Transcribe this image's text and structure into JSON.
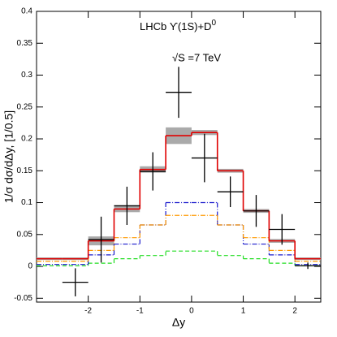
{
  "chart_data": {
    "type": "histogram",
    "annotations": [
      {
        "text": "LHCb ϒ(1S)+D",
        "sup": "0"
      },
      {
        "text": "√S =7 TeV"
      }
    ],
    "x_label": "Δy",
    "y_label": "1/σ dσ/dΔy, [1/0.5]",
    "xlim": [
      -3,
      2.5
    ],
    "ylim": [
      -0.056,
      0.4
    ],
    "xticks": [
      -2,
      -1,
      0,
      1,
      2
    ],
    "yticks": [
      -0.05,
      0,
      0.05,
      0.1,
      0.15,
      0.2,
      0.25,
      0.3,
      0.35,
      0.4
    ],
    "bins": [
      -3,
      -2.5,
      -2,
      -1.5,
      -1,
      -0.5,
      0,
      0.5,
      1,
      1.5,
      2,
      2.5
    ],
    "series": [
      {
        "color": "#22dd22",
        "style": "dashed",
        "values": [
          0.001,
          0.001,
          0.005,
          0.012,
          0.017,
          0.024,
          0.024,
          0.017,
          0.012,
          0.005,
          0.001
        ]
      },
      {
        "color": "#1a1acc",
        "style": "dashdot",
        "values": [
          0.003,
          0.003,
          0.018,
          0.035,
          0.065,
          0.1,
          0.1,
          0.065,
          0.035,
          0.018,
          0.003
        ]
      },
      {
        "color": "#ff9900",
        "style": "dashdot",
        "values": [
          0.008,
          0.008,
          0.025,
          0.045,
          0.065,
          0.08,
          0.08,
          0.065,
          0.045,
          0.025,
          0.008
        ]
      },
      {
        "color": "#e00000",
        "style": "solid",
        "band_color": "#aaaaaa",
        "values": [
          0.012,
          0.012,
          0.04,
          0.09,
          0.152,
          0.205,
          0.21,
          0.15,
          0.087,
          0.04,
          0.012
        ],
        "errors": [
          0.002,
          0.002,
          0.007,
          0.005,
          0.005,
          0.013,
          0.004,
          0.003,
          0.003,
          0.003,
          0.002
        ]
      }
    ],
    "points": {
      "color": "#000000",
      "x": [
        -2.25,
        -1.75,
        -1.25,
        -0.75,
        -0.25,
        0.25,
        0.75,
        1.25,
        1.75,
        2.25
      ],
      "xerr": [
        0.25,
        0.25,
        0.25,
        0.25,
        0.25,
        0.25,
        0.25,
        0.25,
        0.25,
        0.25
      ],
      "values": [
        -0.025,
        0.042,
        0.095,
        0.149,
        0.273,
        0.17,
        0.117,
        0.087,
        0.058,
        0.001
      ],
      "yerr": [
        0.022,
        0.036,
        0.03,
        0.03,
        0.04,
        0.038,
        0.024,
        0.025,
        0.024,
        0.005
      ]
    }
  }
}
